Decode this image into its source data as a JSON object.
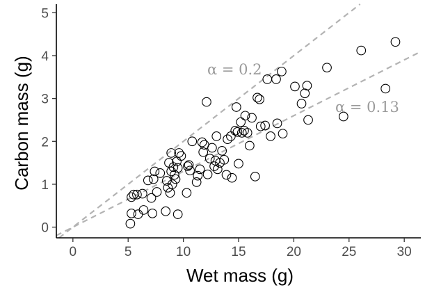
{
  "chart_data": {
    "type": "scatter",
    "xlabel": "Wet mass (g)",
    "ylabel": "Carbon mass (g)",
    "xlim": [
      -1.5,
      31.5
    ],
    "ylim": [
      -0.25,
      5.2
    ],
    "xticks": [
      0,
      5,
      10,
      15,
      20,
      25,
      30
    ],
    "yticks": [
      0,
      1,
      2,
      3,
      4,
      5
    ],
    "grid": false,
    "marker": "open-circle",
    "colors": {
      "points": "#000000",
      "reference_lines": "#b3b3b3",
      "annotations": "#9a9a9a",
      "axes": "#000000"
    },
    "reference_lines": [
      {
        "label": "α = 0.2",
        "slope": 0.2,
        "intercept": 0,
        "style": "dashed"
      },
      {
        "label": "α = 0.13",
        "slope": 0.13,
        "intercept": 0,
        "style": "dashed"
      }
    ],
    "points": [
      [
        5.2,
        0.08
      ],
      [
        5.3,
        0.32
      ],
      [
        5.3,
        0.7
      ],
      [
        5.5,
        0.76
      ],
      [
        5.8,
        0.76
      ],
      [
        5.9,
        0.3
      ],
      [
        6.4,
        0.4
      ],
      [
        6.3,
        0.78
      ],
      [
        6.8,
        1.09
      ],
      [
        7.1,
        0.68
      ],
      [
        7.2,
        0.32
      ],
      [
        7.3,
        1.12
      ],
      [
        7.4,
        1.3
      ],
      [
        7.6,
        0.82
      ],
      [
        7.9,
        1.26
      ],
      [
        8.4,
        0.37
      ],
      [
        8.5,
        1.08
      ],
      [
        8.6,
        0.92
      ],
      [
        8.7,
        1.5
      ],
      [
        8.8,
        0.8
      ],
      [
        8.9,
        1.3
      ],
      [
        8.9,
        1.73
      ],
      [
        9.0,
        1.0
      ],
      [
        9.1,
        1.4
      ],
      [
        9.2,
        1.22
      ],
      [
        9.3,
        1.12
      ],
      [
        9.4,
        1.53
      ],
      [
        9.5,
        0.3
      ],
      [
        9.5,
        1.38
      ],
      [
        9.6,
        1.73
      ],
      [
        9.8,
        1.66
      ],
      [
        10.3,
        0.8
      ],
      [
        10.4,
        1.42
      ],
      [
        10.5,
        1.45
      ],
      [
        10.6,
        1.32
      ],
      [
        10.8,
        2.0
      ],
      [
        11.2,
        1.05
      ],
      [
        11.3,
        1.2
      ],
      [
        11.5,
        1.35
      ],
      [
        11.7,
        1.98
      ],
      [
        11.8,
        1.75
      ],
      [
        11.9,
        1.92
      ],
      [
        12.1,
        2.92
      ],
      [
        12.2,
        1.23
      ],
      [
        12.4,
        1.6
      ],
      [
        12.6,
        1.85
      ],
      [
        12.8,
        1.42
      ],
      [
        12.9,
        1.55
      ],
      [
        13.1,
        1.35
      ],
      [
        13.0,
        2.12
      ],
      [
        13.3,
        1.5
      ],
      [
        13.5,
        1.78
      ],
      [
        13.7,
        1.57
      ],
      [
        13.9,
        1.22
      ],
      [
        14.0,
        2.05
      ],
      [
        14.3,
        2.12
      ],
      [
        14.4,
        1.15
      ],
      [
        14.7,
        2.25
      ],
      [
        14.8,
        2.8
      ],
      [
        14.9,
        2.22
      ],
      [
        15.0,
        1.48
      ],
      [
        15.2,
        2.45
      ],
      [
        15.3,
        2.2
      ],
      [
        15.5,
        2.25
      ],
      [
        15.6,
        2.6
      ],
      [
        15.8,
        2.2
      ],
      [
        16.0,
        1.9
      ],
      [
        16.2,
        2.55
      ],
      [
        16.5,
        1.18
      ],
      [
        16.7,
        3.02
      ],
      [
        16.9,
        2.98
      ],
      [
        17.0,
        2.35
      ],
      [
        17.4,
        2.37
      ],
      [
        17.6,
        3.45
      ],
      [
        17.9,
        2.12
      ],
      [
        18.4,
        3.45
      ],
      [
        18.5,
        2.42
      ],
      [
        18.9,
        3.63
      ],
      [
        19.0,
        2.18
      ],
      [
        20.1,
        3.28
      ],
      [
        20.7,
        2.88
      ],
      [
        21.0,
        3.12
      ],
      [
        21.2,
        3.3
      ],
      [
        21.3,
        2.5
      ],
      [
        23.0,
        3.72
      ],
      [
        24.5,
        2.58
      ],
      [
        26.1,
        4.12
      ],
      [
        28.3,
        3.23
      ],
      [
        29.2,
        4.32
      ]
    ]
  }
}
